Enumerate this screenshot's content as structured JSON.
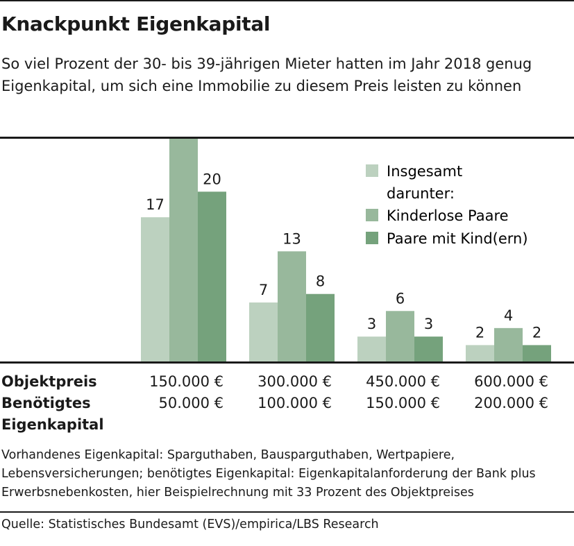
{
  "header": {
    "title": "Knackpunkt Eigenkapital",
    "subtitle": "So viel Prozent der 30- bis 39-jährigen Mieter hatten im Jahr 2018 genug Eigenkapital, um sich eine Immobilie zu diesem Preis leisten zu können"
  },
  "chart_data": {
    "type": "bar",
    "categories": [
      "150.000 €",
      "300.000 €",
      "450.000 €",
      "600.000 €"
    ],
    "series": [
      {
        "name": "Insgesamt",
        "values": [
          17,
          7,
          3,
          2
        ],
        "color": "#bcd1bf"
      },
      {
        "name": "Kinderlose Paare",
        "values": [
          27,
          13,
          6,
          4
        ],
        "color": "#98b89c"
      },
      {
        "name": "Paare mit Kind(ern)",
        "values": [
          20,
          8,
          3,
          2
        ],
        "color": "#75a27c"
      }
    ],
    "legend_note": "darunter:",
    "legend_position": "top-right",
    "ylim": [
      0,
      30
    ],
    "grid": false,
    "row_labels": {
      "price": "Objektpreis",
      "equity_line1": "Benötigtes",
      "equity_line2": "Eigenkapital"
    },
    "prices": [
      "150.000 €",
      "300.000 €",
      "450.000 €",
      "600.000 €"
    ],
    "equity": [
      "50.000 €",
      "100.000 €",
      "150.000 €",
      "200.000 €"
    ]
  },
  "footer": {
    "note": "Vorhandenes Eigenkapital: Sparguthaben, Bausparguthaben, Wertpapiere, Lebensversicherungen; benötigtes Eigenkapital: Eigenkapitalanforderung der Bank plus Erwerbsnebenkosten, hier Beispielrechnung mit 33 Prozent des Objektpreises",
    "source": "Quelle: Statistisches Bundesamt (EVS)/empirica/LBS Research"
  }
}
